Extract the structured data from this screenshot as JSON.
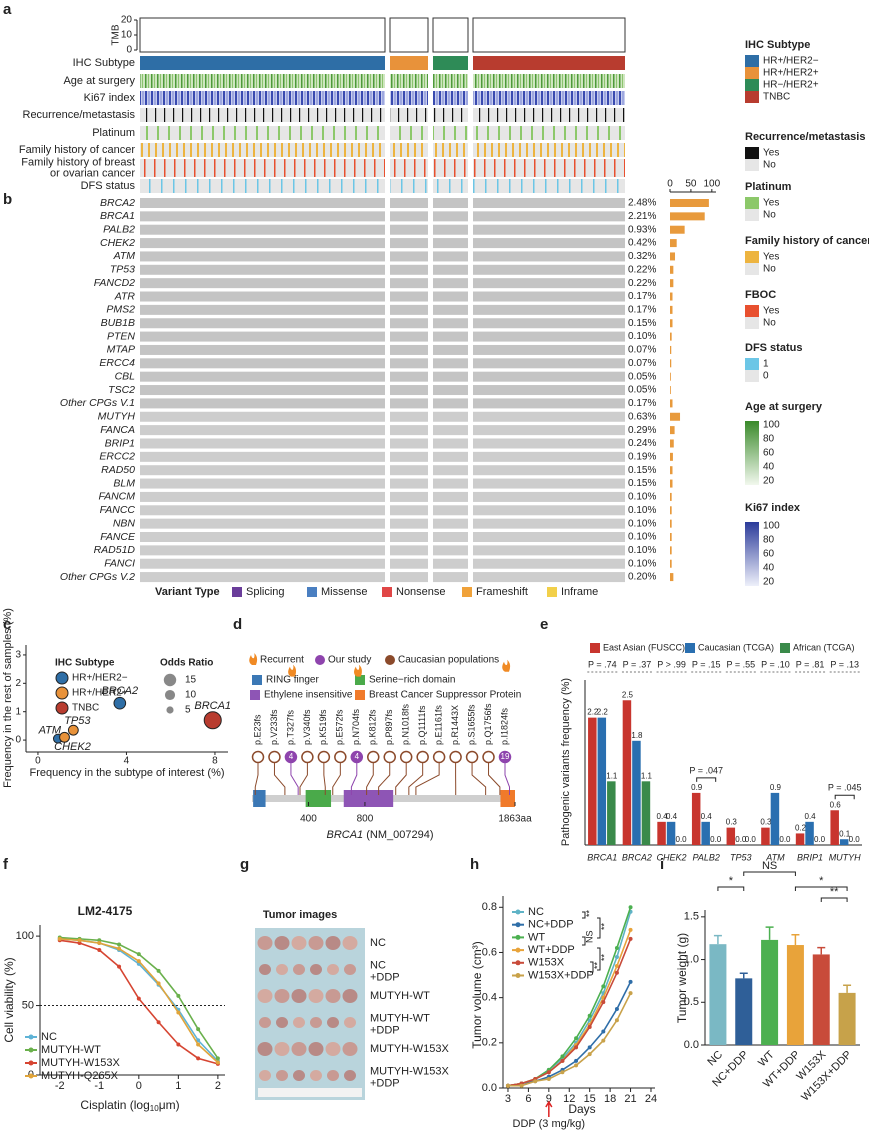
{
  "panel_labels": [
    "a",
    "b",
    "c",
    "d",
    "e",
    "f",
    "g",
    "h",
    "i"
  ],
  "oncoprint": {
    "tmb_label": "TMB",
    "tmb_lim": [
      0,
      20
    ],
    "tmb_ticks": [
      0,
      10,
      20
    ],
    "tracks": [
      [
        "IHC Subtype"
      ],
      [
        "Age at surgery"
      ],
      [
        "Ki67 index"
      ],
      [
        "Recurrence/metastasis"
      ],
      [
        "Platinum"
      ],
      [
        "Family history of cancer"
      ],
      [
        "Family history of breast",
        "or ovarian cancer"
      ],
      [
        "DFS status"
      ]
    ],
    "genes": [
      "BRCA2",
      "BRCA1",
      "PALB2",
      "CHEK2",
      "ATM",
      "TP53",
      "FANCD2",
      "ATR",
      "PMS2",
      "BUB1B",
      "PTEN",
      "MTAP",
      "ERCC4",
      "CBL",
      "TSC2",
      "Other CPGs V.1",
      "MUTYH",
      "FANCA",
      "BRIP1",
      "ERCC2",
      "RAD50",
      "BLM",
      "FANCM",
      "FANCC",
      "NBN",
      "FANCE",
      "RAD51D",
      "FANCI",
      "Other CPGs V.2"
    ],
    "frequencies": [
      2.48,
      2.21,
      0.93,
      0.42,
      0.32,
      0.22,
      0.22,
      0.17,
      0.17,
      0.15,
      0.1,
      0.07,
      0.07,
      0.05,
      0.05,
      0.17,
      0.63,
      0.29,
      0.24,
      0.19,
      0.15,
      0.15,
      0.1,
      0.1,
      0.1,
      0.1,
      0.1,
      0.1,
      0.2
    ],
    "frequency_labels": [
      "2.48%",
      "2.21%",
      "0.93%",
      "0.42%",
      "0.32%",
      "0.22%",
      "0.22%",
      "0.17%",
      "0.17%",
      "0.15%",
      "0.10%",
      "0.07%",
      "0.07%",
      "0.05%",
      "0.05%",
      "0.17%",
      "0.63%",
      "0.29%",
      "0.24%",
      "0.19%",
      "0.15%",
      "0.15%",
      "0.10%",
      "0.10%",
      "0.10%",
      "0.10%",
      "0.10%",
      "0.10%",
      "0.20%"
    ],
    "counts": [
      93,
      83,
      35,
      16,
      12,
      8,
      8,
      6,
      6,
      6,
      4,
      3,
      3,
      2,
      2,
      6,
      24,
      11,
      9,
      7,
      6,
      6,
      4,
      4,
      4,
      4,
      4,
      4,
      8
    ],
    "count_lim": [
      0,
      110
    ],
    "count_ticks": [
      0,
      50,
      100
    ],
    "count_color": "#e89a3c",
    "variant_type_title": "Variant Type",
    "variant_types": [
      {
        "name": "Splicing",
        "color": "#6a3d9a"
      },
      {
        "name": "Missense",
        "color": "#4a7fc1"
      },
      {
        "name": "Nonsense",
        "color": "#e04646"
      },
      {
        "name": "Frameshift",
        "color": "#f0a23a"
      },
      {
        "name": "Inframe",
        "color": "#f2d04a"
      }
    ]
  },
  "oncoprint_legend": {
    "sections": [
      {
        "title": "IHC Subtype",
        "items": [
          {
            "label": "HR+/HER2−",
            "color": "#2e6ea6"
          },
          {
            "label": "HR+/HER2+",
            "color": "#e8923a"
          },
          {
            "label": "HR−/HER2+",
            "color": "#2e8b57"
          },
          {
            "label": "TNBC",
            "color": "#b83c2f"
          }
        ]
      },
      {
        "title": "Recurrence/metastasis",
        "items": [
          {
            "label": "Yes",
            "color": "#111111"
          },
          {
            "label": "No",
            "color": "#e6e6e6"
          }
        ]
      },
      {
        "title": "Platinum",
        "items": [
          {
            "label": "Yes",
            "color": "#8cc86a"
          },
          {
            "label": "No",
            "color": "#e6e6e6"
          }
        ]
      },
      {
        "title": "Family history of cancer",
        "items": [
          {
            "label": "Yes",
            "color": "#edb440"
          },
          {
            "label": "No",
            "color": "#e6e6e6"
          }
        ]
      },
      {
        "title": "FBOC",
        "items": [
          {
            "label": "Yes",
            "color": "#e8502f"
          },
          {
            "label": "No",
            "color": "#e6e6e6"
          }
        ]
      },
      {
        "title": "DFS status",
        "items": [
          {
            "label": "1",
            "color": "#6cc6e6"
          },
          {
            "label": "0",
            "color": "#e6e6e6"
          }
        ]
      }
    ],
    "gradients": [
      {
        "title": "Age at surgery",
        "color": "#3a8a2a",
        "ticks": [
          100,
          80,
          60,
          40,
          20
        ]
      },
      {
        "title": "Ki67 index",
        "color": "#2b3b9a",
        "ticks": [
          100,
          80,
          60,
          40,
          20
        ]
      }
    ]
  },
  "lollipop": {
    "legend": [
      {
        "label": "Recurrent",
        "color": "#f08a24"
      },
      {
        "label": "Our study",
        "color": "#8e44ad"
      },
      {
        "label": "Caucasian populations",
        "color": "#8b4a2b"
      }
    ],
    "domains": [
      {
        "name": "RING finger",
        "color": "#3b78b5",
        "start": 8,
        "end": 96
      },
      {
        "name": "Ethylene insensitive 3",
        "color": "#8e55b5",
        "start": 650,
        "end": 1000
      },
      {
        "name": "Serine−rich domain",
        "color": "#4aaa4a",
        "start": 380,
        "end": 560
      },
      {
        "name": "Breast Cancer Suppressor Protein",
        "color": "#f07a2a",
        "start": 1760,
        "end": 1863
      }
    ],
    "variants": [
      {
        "name": "p.E23fs",
        "position": 23,
        "color": "#8b4a2b"
      },
      {
        "name": "p.V233fs",
        "position": 233,
        "color": "#8b4a2b"
      },
      {
        "name": "p.T327fs",
        "position": 327,
        "color": "#8e44ad",
        "count": 4,
        "recurrent": true
      },
      {
        "name": "p.V340fs",
        "position": 340,
        "color": "#8b4a2b"
      },
      {
        "name": "p.K519fs",
        "position": 519,
        "color": "#8b4a2b"
      },
      {
        "name": "p.E572fs",
        "position": 572,
        "color": "#8b4a2b"
      },
      {
        "name": "p.N704fs",
        "position": 704,
        "color": "#8e44ad",
        "count": 4,
        "recurrent": true
      },
      {
        "name": "p.K812fs",
        "position": 812,
        "color": "#8b4a2b"
      },
      {
        "name": "p.P897fs",
        "position": 897,
        "color": "#8b4a2b"
      },
      {
        "name": "p.N1018fs",
        "position": 1018,
        "color": "#8b4a2b"
      },
      {
        "name": "p.Q1111fs",
        "position": 1111,
        "color": "#8b4a2b"
      },
      {
        "name": "p.E1161fs",
        "position": 1161,
        "color": "#8b4a2b"
      },
      {
        "name": "p.R1443X",
        "position": 1443,
        "color": "#8b4a2b"
      },
      {
        "name": "p.S1655fs",
        "position": 1655,
        "color": "#8b4a2b"
      },
      {
        "name": "p.Q1756fs",
        "position": 1756,
        "color": "#8b4a2b"
      },
      {
        "name": "p.I1824fs",
        "position": 1824,
        "color": "#8e44ad",
        "count": 19,
        "recurrent": true
      }
    ],
    "xlim": [
      0,
      1863
    ],
    "xticks": [
      400,
      800,
      {
        "value": 1863,
        "label": "1863aa"
      }
    ],
    "axis_label": [
      "BRCA1",
      " (NM_007294)"
    ]
  },
  "tumor_images": {
    "title": "Tumor images",
    "rows": [
      [
        "NC"
      ],
      [
        "NC",
        "+DDP"
      ],
      [
        "MUTYH-WT"
      ],
      [
        "MUTYH-WT",
        "+DDP"
      ],
      [
        "MUTYH-W153X"
      ],
      [
        "MUTYH-W153X",
        "+DDP"
      ]
    ]
  },
  "chart_data": [
    {
      "type": "scatter",
      "xlabel": "Frequency in the subtype of interest (%)",
      "ylabel": "Frequency in the rest of samples (%)",
      "xlim": [
        -0.54,
        8.59
      ],
      "ylim": [
        -0.42,
        3.35
      ],
      "xticks": [
        0,
        4,
        8
      ],
      "yticks": [
        0,
        1,
        2,
        3
      ],
      "point_labels": [
        "ATM",
        "CHEK2",
        "TP53",
        "BRCA2",
        "BRCA1"
      ],
      "x": [
        0.9,
        1.2,
        1.6,
        3.7,
        7.9
      ],
      "values": [
        0.05,
        0.1,
        0.35,
        1.3,
        0.7
      ],
      "sizes": [
        4,
        5,
        5,
        7,
        15
      ],
      "colors": [
        "#2e6ea6",
        "#e8923a",
        "#e8923a",
        "#2e6ea6",
        "#b83c2f"
      ],
      "legend_title": "IHC Subtype",
      "legend": [
        {
          "name": "HR+/HER2−",
          "color": "#2e6ea6"
        },
        {
          "name": "HR+/HER2+",
          "color": "#e8923a"
        },
        {
          "name": "TNBC",
          "color": "#b83c2f"
        }
      ],
      "size_legend_title": "Odds Ratio",
      "size_legend": [
        15,
        10,
        5
      ]
    },
    {
      "type": "grouped_bar",
      "ylabel": "Pathogenic variants frequency (%)",
      "ylim": [
        0,
        2.85
      ],
      "categories": [
        "BRCA1",
        "BRCA2",
        "CHEK2",
        "PALB2",
        "TP53",
        "ATM",
        "BRIP1",
        "MUTYH"
      ],
      "series": [
        {
          "name": "East Asian (FUSCC)",
          "color": "#c8352e",
          "values": [
            2.2,
            2.5,
            0.4,
            0.9,
            0.3,
            0.3,
            0.2,
            0.6
          ],
          "value_labels": [
            "2.2",
            "2.5",
            "0.4",
            "0.9",
            "0.3",
            "0.3",
            "0.2",
            "0.6"
          ]
        },
        {
          "name": "Caucasian (TCGA)",
          "color": "#2a6fb0",
          "values": [
            2.2,
            1.8,
            0.4,
            0.4,
            0.0,
            0.9,
            0.4,
            0.1
          ],
          "value_labels": [
            "2.2",
            "1.8",
            "0.4",
            "0.4",
            "0.0",
            "0.9",
            "0.4",
            "0.1"
          ]
        },
        {
          "name": "African (TCGA)",
          "color": "#3a8a4a",
          "values": [
            1.1,
            1.1,
            0.0,
            0.0,
            0.0,
            0.0,
            0.0,
            0.0
          ],
          "value_labels": [
            "1.1",
            "1.1",
            "0.0",
            "0.0",
            "0.0",
            "0.0",
            "0.0",
            "0.0"
          ]
        }
      ],
      "p_values": [
        "P = .74",
        "P = .37",
        "P > .99",
        "P = .15",
        "P = .55",
        "P = .10",
        "P = .81",
        "P = .13"
      ],
      "pairwise": [
        {
          "category": 3,
          "label": "P = .047"
        },
        {
          "category": 7,
          "label": "P = .045"
        }
      ]
    },
    {
      "type": "line",
      "title": "LM2-4175",
      "xlabel": [
        "Cisplatin (log",
        "10",
        "μm)"
      ],
      "ylabel": "Cell viability (%)",
      "xlim": [
        -2.5,
        2.18
      ],
      "ylim": [
        0,
        108
      ],
      "xticks": [
        -2,
        -1,
        0,
        1,
        2
      ],
      "yticks": [
        0,
        50,
        100
      ],
      "reference_line": 50,
      "x": [
        -2,
        -1.5,
        -1,
        -0.5,
        0,
        0.5,
        1,
        1.5,
        2
      ],
      "series": [
        {
          "name": "NC",
          "color": "#5fb3d6",
          "values": [
            98,
            97,
            95,
            90,
            80,
            65,
            47,
            25,
            10
          ]
        },
        {
          "name": "MUTYH-WT",
          "color": "#6ab04c",
          "values": [
            99,
            98,
            97,
            94,
            87,
            75,
            57,
            33,
            12
          ]
        },
        {
          "name": "MUTYH-W153X",
          "color": "#d64532",
          "values": [
            97,
            95,
            90,
            78,
            55,
            38,
            22,
            12,
            8
          ]
        },
        {
          "name": "MUTYH-Q265X",
          "color": "#e0a43a",
          "values": [
            98,
            97,
            95,
            91,
            82,
            66,
            45,
            22,
            9
          ]
        }
      ]
    },
    {
      "type": "line",
      "xlabel": "Days",
      "ylabel": "Tumor volume (cm³)",
      "annotation": "DDP (3 mg/kg)",
      "annotation_x": 9,
      "xlim": [
        2.27,
        24.59
      ],
      "ylim": [
        0,
        0.85
      ],
      "xticks": [
        3,
        6,
        9,
        12,
        15,
        18,
        21,
        24
      ],
      "yticks": [
        {
          "value": 0,
          "label": "0.0"
        },
        {
          "value": 0.2,
          "label": "0.2"
        },
        {
          "value": 0.4,
          "label": "0.4"
        },
        {
          "value": 0.6,
          "label": "0.6"
        },
        {
          "value": 0.8,
          "label": "0.8"
        }
      ],
      "x": [
        3,
        5,
        7,
        9,
        11,
        13,
        15,
        17,
        19,
        21
      ],
      "series": [
        {
          "name": "NC",
          "color": "#5fb3c6",
          "values": [
            0.01,
            0.02,
            0.04,
            0.08,
            0.13,
            0.2,
            0.3,
            0.42,
            0.58,
            0.78
          ]
        },
        {
          "name": "NC+DDP",
          "color": "#2f6ea8",
          "values": [
            0.01,
            0.02,
            0.03,
            0.05,
            0.08,
            0.12,
            0.18,
            0.25,
            0.35,
            0.47
          ]
        },
        {
          "name": "WT",
          "color": "#4cb050",
          "values": [
            0.01,
            0.02,
            0.04,
            0.08,
            0.14,
            0.22,
            0.32,
            0.45,
            0.62,
            0.8
          ]
        },
        {
          "name": "WT+DDP",
          "color": "#e8a33a",
          "values": [
            0.01,
            0.02,
            0.04,
            0.07,
            0.12,
            0.19,
            0.28,
            0.4,
            0.54,
            0.7
          ]
        },
        {
          "name": "W153X",
          "color": "#c84b3a",
          "values": [
            0.01,
            0.02,
            0.04,
            0.07,
            0.12,
            0.18,
            0.27,
            0.38,
            0.51,
            0.66
          ]
        },
        {
          "name": "W153X+DDP",
          "color": "#c9a24a",
          "values": [
            0.01,
            0.01,
            0.03,
            0.04,
            0.07,
            0.1,
            0.15,
            0.21,
            0.3,
            0.42
          ]
        }
      ],
      "significance": [
        "**",
        "**",
        "NS",
        "**",
        "**"
      ]
    },
    {
      "type": "bar",
      "ylabel": "Tumor weight (g)",
      "ylim": [
        0,
        1.58
      ],
      "yticks": [
        {
          "value": 0,
          "label": "0.0"
        },
        {
          "value": 0.5,
          "label": "0.5"
        },
        {
          "value": 1,
          "label": "1.0"
        },
        {
          "value": 1.5,
          "label": "1.5"
        }
      ],
      "categories": [
        "NC",
        "NC+DDP",
        "WT",
        "WT+DDP",
        "W153X",
        "W153X+DDP"
      ],
      "values": [
        1.18,
        0.78,
        1.23,
        1.17,
        1.06,
        0.61
      ],
      "errors": [
        0.1,
        0.06,
        0.15,
        0.12,
        0.08,
        0.09
      ],
      "colors": [
        "#7ab8c4",
        "#2f5f98",
        "#4cb050",
        "#e8a33a",
        "#c84b3a",
        "#c7a24a"
      ],
      "significance": [
        {
          "label": "*",
          "from": 0,
          "to": 1
        },
        {
          "label": "NS",
          "from": 1,
          "to": 3
        },
        {
          "label": "*",
          "from": 3,
          "to": 5
        },
        {
          "label": "**",
          "from": 4,
          "to": 5
        }
      ]
    }
  ]
}
